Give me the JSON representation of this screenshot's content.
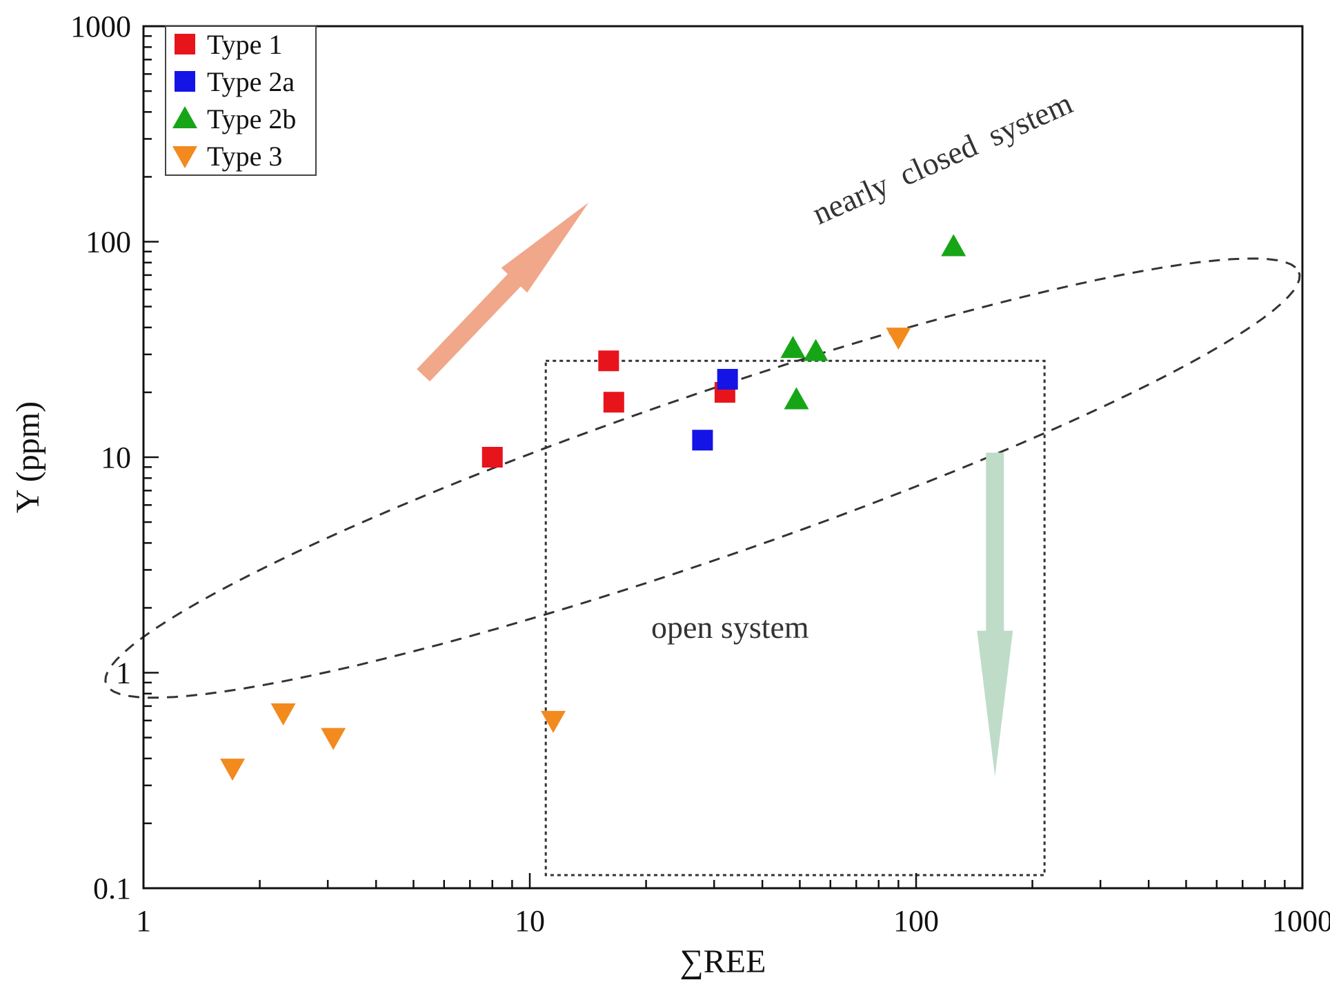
{
  "chart_data": {
    "type": "scatter",
    "xscale": "log",
    "yscale": "log",
    "xlabel": "∑REE",
    "ylabel": "Y (ppm)",
    "xlim": [
      1,
      1000
    ],
    "ylim": [
      0.1,
      1000
    ],
    "xticks": [
      {
        "value": 1,
        "label": "1"
      },
      {
        "value": 10,
        "label": "10"
      },
      {
        "value": 100,
        "label": "100"
      },
      {
        "value": 1000,
        "label": "1000"
      }
    ],
    "yticks": [
      {
        "value": 0.1,
        "label": "0.1"
      },
      {
        "value": 1,
        "label": "1"
      },
      {
        "value": 10,
        "label": "10"
      },
      {
        "value": 100,
        "label": "100"
      },
      {
        "value": 1000,
        "label": "1000"
      }
    ],
    "legend_position": "top-left",
    "series": [
      {
        "name": "Type 1",
        "marker": "square",
        "color": "#e8141b",
        "points": [
          [
            8,
            10
          ],
          [
            16,
            28
          ],
          [
            16.5,
            18
          ],
          [
            32,
            20
          ]
        ]
      },
      {
        "name": "Type 2a",
        "marker": "square",
        "color": "#1414e6",
        "points": [
          [
            28,
            12
          ],
          [
            32.5,
            23
          ]
        ]
      },
      {
        "name": "Type 2b",
        "marker": "triangle-up",
        "color": "#16a516",
        "points": [
          [
            48,
            32
          ],
          [
            55,
            31
          ],
          [
            49,
            18.5
          ],
          [
            125,
            95
          ]
        ]
      },
      {
        "name": "Type 3",
        "marker": "triangle-down",
        "color": "#f28a1e",
        "points": [
          [
            1.7,
            0.36
          ],
          [
            2.3,
            0.65
          ],
          [
            3.1,
            0.5
          ],
          [
            11.5,
            0.6
          ],
          [
            90,
            36
          ]
        ]
      }
    ],
    "annotations": [
      {
        "text": "nearly  closed  system",
        "x": 120,
        "y": 220,
        "rotation_deg": -24
      },
      {
        "text": "open system",
        "x": 33,
        "y": 1.45,
        "rotation_deg": 0
      }
    ],
    "regions": {
      "closed_ellipse": {
        "center": [
          28,
          8
        ],
        "semi_major_decades": 1.82,
        "semi_minor_decades": 0.34,
        "rotation_deg": 32.5,
        "style": "dashed"
      },
      "open_box": {
        "x": [
          11,
          215
        ],
        "y": [
          0.115,
          28
        ],
        "style": "dotted"
      }
    },
    "arrows": [
      {
        "from": [
          5.3,
          24
        ],
        "to": [
          14.2,
          152
        ],
        "color": "#f0a78a",
        "direction": "up-right"
      },
      {
        "from": [
          160,
          10.5
        ],
        "to": [
          160,
          0.33
        ],
        "color": "#bfdcc8",
        "direction": "down"
      }
    ]
  }
}
